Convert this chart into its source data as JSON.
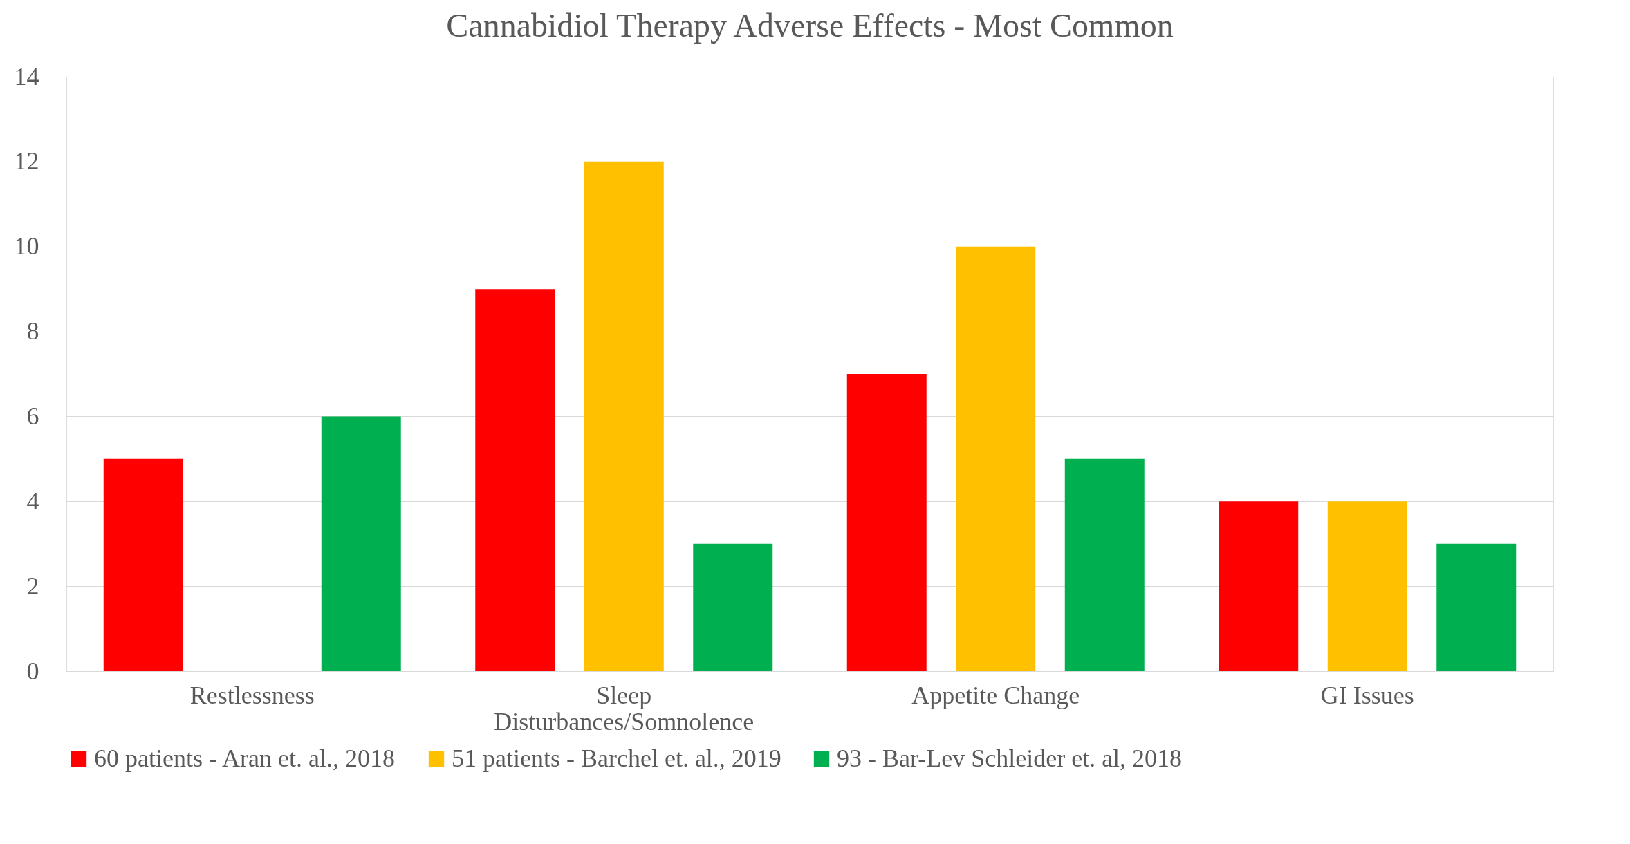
{
  "chart_data": {
    "type": "bar",
    "title": "Cannabidiol Therapy Adverse Effects - Most Common",
    "categories": [
      "Restlessness",
      "Sleep Disturbances/Somnolence",
      "Appetite Change",
      "GI Issues"
    ],
    "series": [
      {
        "name": "60 patients - Aran et. al., 2018",
        "color": "#ff0000",
        "values": [
          5,
          9,
          7,
          4
        ]
      },
      {
        "name": "51 patients - Barchel et. al., 2019",
        "color": "#ffc000",
        "values": [
          null,
          12,
          10,
          4
        ]
      },
      {
        "name": "93 - Bar-Lev Schleider et. al, 2018",
        "color": "#00b050",
        "values": [
          6,
          3,
          5,
          3
        ]
      }
    ],
    "ylim": [
      0,
      14
    ],
    "yticks": [
      0,
      2,
      4,
      6,
      8,
      10,
      12,
      14
    ],
    "grid": "y",
    "legend": "bottom"
  }
}
